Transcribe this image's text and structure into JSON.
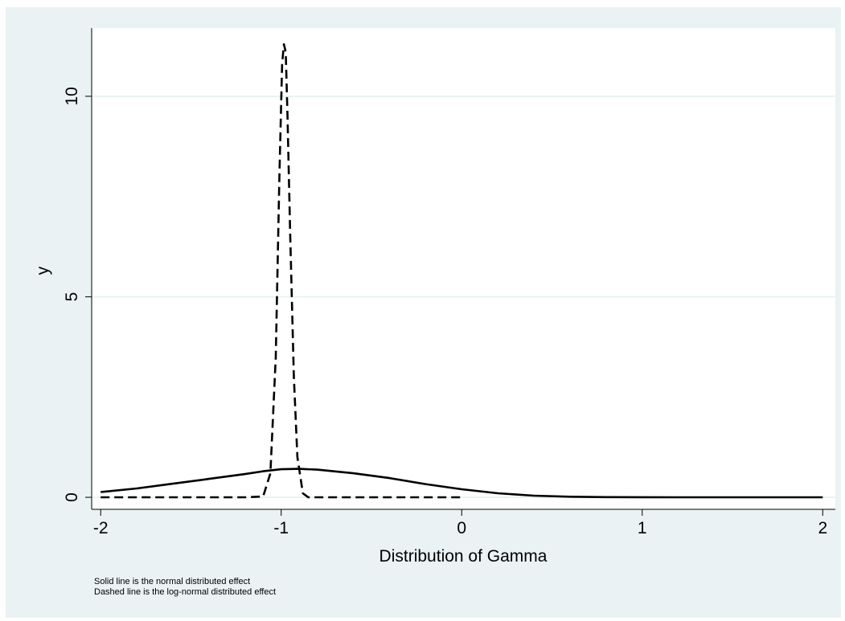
{
  "chart_data": {
    "type": "line",
    "title": "",
    "xlabel": "Distribution of Gamma",
    "ylabel": "y",
    "xlim": [
      -2.05,
      2.07
    ],
    "ylim": [
      -0.3,
      11.7
    ],
    "x_ticks": [
      "-2",
      "-1",
      "0",
      "1",
      "2"
    ],
    "y_ticks": [
      "0",
      "5",
      "10"
    ],
    "grid": true,
    "legend": "none",
    "colors": {
      "background": "#eaf2f3",
      "plot_area": "#ffffff",
      "line": "#000000",
      "grid": "#eaf2f3"
    },
    "series": [
      {
        "style": "solid",
        "x": [
          -2.0,
          -1.8,
          -1.6,
          -1.4,
          -1.2,
          -1.1,
          -1.0,
          -0.9,
          -0.8,
          -0.6,
          -0.4,
          -0.2,
          0.0,
          0.2,
          0.4,
          0.6,
          0.8,
          1.0,
          1.2,
          1.5,
          2.0
        ],
        "y": [
          0.13,
          0.22,
          0.34,
          0.46,
          0.58,
          0.65,
          0.7,
          0.71,
          0.69,
          0.6,
          0.48,
          0.33,
          0.2,
          0.1,
          0.04,
          0.015,
          0.005,
          0.002,
          0.0,
          0.0,
          0.0
        ]
      },
      {
        "style": "dashed",
        "x": [
          -2.0,
          -1.2,
          -1.1,
          -1.06,
          -1.03,
          -1.01,
          -0.995,
          -0.985,
          -0.975,
          -0.965,
          -0.95,
          -0.93,
          -0.91,
          -0.88,
          -0.85,
          -0.6,
          -0.3,
          0.0
        ],
        "y": [
          0.0,
          0.0,
          0.02,
          0.6,
          3.5,
          8.0,
          10.8,
          11.3,
          11.1,
          9.5,
          6.5,
          3.0,
          1.0,
          0.1,
          0.0,
          0.0,
          0.0,
          0.0
        ]
      }
    ],
    "notes": [
      "Solid line is the normal distributed effect",
      "Dashed line is the log-normal distributed effect"
    ]
  }
}
